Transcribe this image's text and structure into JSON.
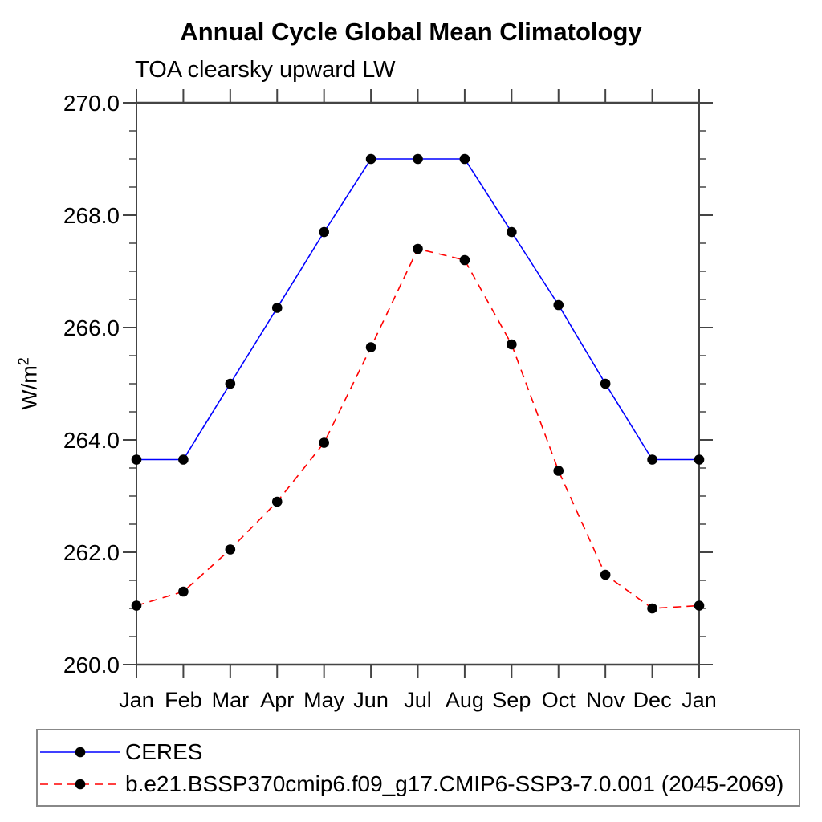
{
  "title": "Annual Cycle Global Mean Climatology",
  "subtitle": "TOA clearsky upward LW",
  "y_axis_title": {
    "base": "W/m",
    "superscript": "2"
  },
  "chart_data": {
    "type": "line",
    "x_categories": [
      "Jan",
      "Feb",
      "Mar",
      "Apr",
      "May",
      "Jun",
      "Jul",
      "Aug",
      "Sep",
      "Oct",
      "Nov",
      "Dec",
      "Jan"
    ],
    "ylabel": "W/m2",
    "ylim": [
      260.0,
      270.0
    ],
    "ytick_major_values": [
      260,
      262,
      264,
      266,
      268,
      270
    ],
    "ytick_major_labels": [
      "260.0",
      "262.0",
      "264.0",
      "266.0",
      "268.0",
      "270.0"
    ],
    "ytick_minor_step": 0.5,
    "grid": false,
    "legend_position": "bottom",
    "axis_color": "#444444",
    "series": [
      {
        "name": "CERES",
        "line_color": "#0000ff",
        "line_style": "solid",
        "marker": "circle",
        "marker_color": "#000000",
        "values": [
          263.65,
          263.65,
          265.0,
          266.35,
          267.7,
          269.0,
          269.0,
          269.0,
          267.7,
          266.4,
          265.0,
          263.65,
          263.65
        ]
      },
      {
        "name": "b.e21.BSSP370cmip6.f09_g17.CMIP6-SSP3-7.0.001 (2045-2069)",
        "line_color": "#ff0000",
        "line_style": "dashed",
        "marker": "circle",
        "marker_color": "#000000",
        "values": [
          261.05,
          261.3,
          262.05,
          262.9,
          263.95,
          265.65,
          267.4,
          267.2,
          265.7,
          263.45,
          261.6,
          261.0,
          261.05
        ]
      }
    ]
  }
}
